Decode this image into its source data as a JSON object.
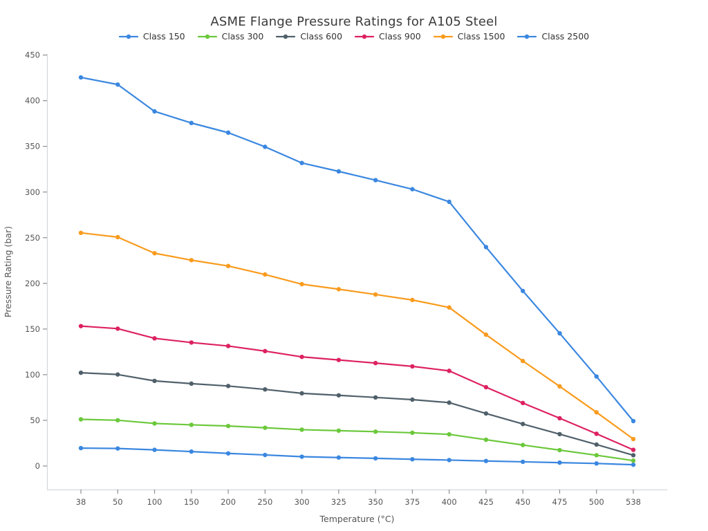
{
  "chart_data": {
    "type": "line",
    "title": "ASME Flange Pressure Ratings for A105 Steel",
    "xlabel": "Temperature (°C)",
    "ylabel": "Pressure Rating (bar)",
    "categories": [
      "38",
      "50",
      "100",
      "150",
      "200",
      "250",
      "300",
      "325",
      "350",
      "375",
      "400",
      "425",
      "450",
      "475",
      "500",
      "538"
    ],
    "yticks": [
      0,
      50,
      100,
      150,
      200,
      250,
      300,
      350,
      400,
      450
    ],
    "ylim": [
      -26,
      451
    ],
    "grid": false,
    "legend_position": "top-center",
    "marker": "circle",
    "series": [
      {
        "name": "Class 150",
        "color": "#3A87E0",
        "values": [
          19.6,
          19.2,
          17.7,
          15.8,
          13.8,
          12.1,
          10.2,
          9.3,
          8.4,
          7.4,
          6.5,
          5.5,
          4.6,
          3.7,
          2.8,
          1.4
        ]
      },
      {
        "name": "Class 300",
        "color": "#6BC83B",
        "values": [
          51.1,
          50.1,
          46.6,
          45.1,
          43.8,
          41.9,
          39.8,
          38.7,
          37.6,
          36.4,
          34.7,
          28.8,
          23.0,
          17.4,
          11.8,
          5.9
        ]
      },
      {
        "name": "Class 600",
        "color": "#50606A",
        "values": [
          102.1,
          100.2,
          93.2,
          90.2,
          87.6,
          83.9,
          79.6,
          77.4,
          75.1,
          72.7,
          69.4,
          57.5,
          46.0,
          34.9,
          23.5,
          11.8
        ]
      },
      {
        "name": "Class 900",
        "color": "#DD2160",
        "values": [
          153.2,
          150.4,
          139.8,
          135.2,
          131.4,
          125.8,
          119.5,
          116.1,
          112.7,
          109.1,
          104.2,
          86.3,
          69.0,
          52.3,
          35.3,
          17.7
        ]
      },
      {
        "name": "Class 1500",
        "color": "#F99B1D",
        "values": [
          255.3,
          250.6,
          233.0,
          225.4,
          219.0,
          209.7,
          199.1,
          193.6,
          187.8,
          181.8,
          173.6,
          143.8,
          115.0,
          87.2,
          58.8,
          29.5
        ]
      },
      {
        "name": "Class 2500",
        "color": "#3A87E0",
        "values": [
          425.5,
          417.7,
          388.3,
          375.6,
          365.0,
          349.5,
          331.8,
          322.6,
          313.0,
          303.1,
          289.3,
          239.7,
          191.7,
          145.3,
          98.0,
          49.2
        ]
      }
    ],
    "style": {
      "spine_color": "#d2d7db",
      "tick_mark_color": "#8d8d8d",
      "line_width": 2.2,
      "marker_radius": 3.2
    }
  }
}
